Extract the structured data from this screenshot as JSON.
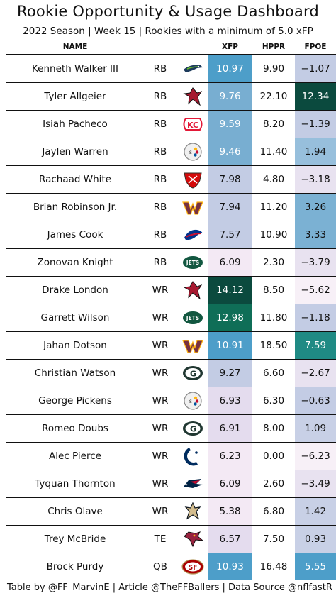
{
  "title": "Rookie Opportunity & Usage Dashboard",
  "subtitle": "2022 Season | Week 15 | Rookies with a minimum of 5.0 xFP",
  "footer": "Table by @FF_MarvinE | Article @TheFFBallers | Data Source @nflfastR",
  "colors": {
    "xfp_low": "#f3e9f4",
    "xfp_mid": "#c6d0e6",
    "xfp_high": "#4d9ec9",
    "xfp_top": "#0a4a3e",
    "teal": "#1f8a84"
  },
  "chart_data": {
    "type": "table",
    "columns": [
      "NAME",
      "",
      "",
      "XFP",
      "HPPR",
      "FPOE"
    ],
    "rows": [
      {
        "name": "Kenneth Walker III",
        "pos": "RB",
        "team_icon": "seahawks-logo-icon",
        "xfp": 10.97,
        "hppr": 9.9,
        "fpoe": -1.07,
        "xfp_s": "10.97",
        "hppr_s": "9.90",
        "fpoe_s": "-1.07"
      },
      {
        "name": "Tyler Allgeier",
        "pos": "RB",
        "team_icon": "falcons-logo-icon",
        "xfp": 9.76,
        "hppr": 22.1,
        "fpoe": 12.34,
        "xfp_s": "9.76",
        "hppr_s": "22.10",
        "fpoe_s": "12.34"
      },
      {
        "name": "Isiah Pacheco",
        "pos": "RB",
        "team_icon": "chiefs-logo-icon",
        "xfp": 9.59,
        "hppr": 8.2,
        "fpoe": -1.39,
        "xfp_s": "9.59",
        "hppr_s": "8.20",
        "fpoe_s": "-1.39"
      },
      {
        "name": "Jaylen Warren",
        "pos": "RB",
        "team_icon": "steelers-logo-icon",
        "xfp": 9.46,
        "hppr": 11.4,
        "fpoe": 1.94,
        "xfp_s": "9.46",
        "hppr_s": "11.40",
        "fpoe_s": "1.94"
      },
      {
        "name": "Rachaad White",
        "pos": "RB",
        "team_icon": "buccaneers-logo-icon",
        "xfp": 7.98,
        "hppr": 4.8,
        "fpoe": -3.18,
        "xfp_s": "7.98",
        "hppr_s": "4.80",
        "fpoe_s": "-3.18"
      },
      {
        "name": "Brian Robinson Jr.",
        "pos": "RB",
        "team_icon": "commanders-logo-icon",
        "xfp": 7.94,
        "hppr": 11.2,
        "fpoe": 3.26,
        "xfp_s": "7.94",
        "hppr_s": "11.20",
        "fpoe_s": "3.26"
      },
      {
        "name": "James Cook",
        "pos": "RB",
        "team_icon": "bills-logo-icon",
        "xfp": 7.57,
        "hppr": 10.9,
        "fpoe": 3.33,
        "xfp_s": "7.57",
        "hppr_s": "10.90",
        "fpoe_s": "3.33"
      },
      {
        "name": "Zonovan Knight",
        "pos": "RB",
        "team_icon": "jets-logo-icon",
        "xfp": 6.09,
        "hppr": 2.3,
        "fpoe": -3.79,
        "xfp_s": "6.09",
        "hppr_s": "2.30",
        "fpoe_s": "-3.79"
      },
      {
        "name": "Drake London",
        "pos": "WR",
        "team_icon": "falcons-logo-icon",
        "xfp": 14.12,
        "hppr": 8.5,
        "fpoe": -5.62,
        "xfp_s": "14.12",
        "hppr_s": "8.50",
        "fpoe_s": "-5.62"
      },
      {
        "name": "Garrett Wilson",
        "pos": "WR",
        "team_icon": "jets-logo-icon",
        "xfp": 12.98,
        "hppr": 11.8,
        "fpoe": -1.18,
        "xfp_s": "12.98",
        "hppr_s": "11.80",
        "fpoe_s": "-1.18"
      },
      {
        "name": "Jahan Dotson",
        "pos": "WR",
        "team_icon": "commanders-logo-icon",
        "xfp": 10.91,
        "hppr": 18.5,
        "fpoe": 7.59,
        "xfp_s": "10.91",
        "hppr_s": "18.50",
        "fpoe_s": "7.59"
      },
      {
        "name": "Christian Watson",
        "pos": "WR",
        "team_icon": "packers-logo-icon",
        "xfp": 9.27,
        "hppr": 6.6,
        "fpoe": -2.67,
        "xfp_s": "9.27",
        "hppr_s": "6.60",
        "fpoe_s": "-2.67"
      },
      {
        "name": "George Pickens",
        "pos": "WR",
        "team_icon": "steelers-logo-icon",
        "xfp": 6.93,
        "hppr": 6.3,
        "fpoe": -0.63,
        "xfp_s": "6.93",
        "hppr_s": "6.30",
        "fpoe_s": "-0.63"
      },
      {
        "name": "Romeo Doubs",
        "pos": "WR",
        "team_icon": "packers-logo-icon",
        "xfp": 6.91,
        "hppr": 8.0,
        "fpoe": 1.09,
        "xfp_s": "6.91",
        "hppr_s": "8.00",
        "fpoe_s": "1.09"
      },
      {
        "name": "Alec Pierce",
        "pos": "WR",
        "team_icon": "colts-logo-icon",
        "xfp": 6.23,
        "hppr": 0.0,
        "fpoe": -6.23,
        "xfp_s": "6.23",
        "hppr_s": "0.00",
        "fpoe_s": "-6.23"
      },
      {
        "name": "Tyquan Thornton",
        "pos": "WR",
        "team_icon": "patriots-logo-icon",
        "xfp": 6.09,
        "hppr": 2.6,
        "fpoe": -3.49,
        "xfp_s": "6.09",
        "hppr_s": "2.60",
        "fpoe_s": "-3.49"
      },
      {
        "name": "Chris Olave",
        "pos": "WR",
        "team_icon": "saints-logo-icon",
        "xfp": 5.38,
        "hppr": 6.8,
        "fpoe": 1.42,
        "xfp_s": "5.38",
        "hppr_s": "6.80",
        "fpoe_s": "1.42"
      },
      {
        "name": "Trey McBride",
        "pos": "TE",
        "team_icon": "cardinals-logo-icon",
        "xfp": 6.57,
        "hppr": 7.5,
        "fpoe": 0.93,
        "xfp_s": "6.57",
        "hppr_s": "7.50",
        "fpoe_s": "0.93"
      },
      {
        "name": "Brock Purdy",
        "pos": "QB",
        "team_icon": "49ers-logo-icon",
        "xfp": 10.93,
        "hppr": 16.48,
        "fpoe": 5.55,
        "xfp_s": "10.93",
        "hppr_s": "16.48",
        "fpoe_s": "5.55"
      }
    ]
  }
}
